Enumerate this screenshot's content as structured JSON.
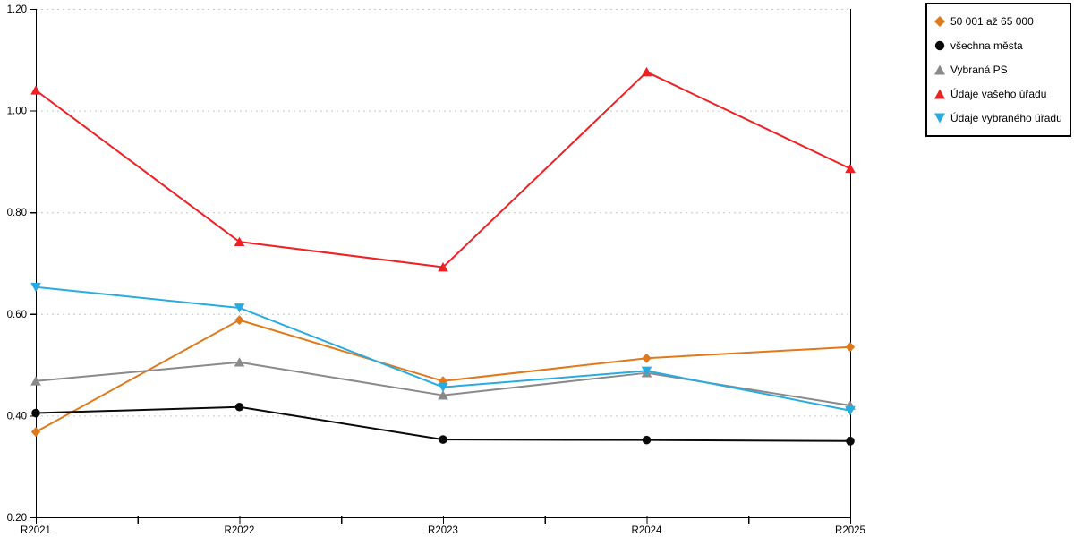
{
  "chart_data": {
    "type": "line",
    "title": "",
    "xlabel": "",
    "ylabel": "",
    "categories": [
      "R2021",
      "R2022",
      "R2023",
      "R2024",
      "R2025"
    ],
    "ylim": [
      0.2,
      1.2
    ],
    "y_tick_labels": [
      "0.20",
      "0.40",
      "0.60",
      "0.80",
      "1.00",
      "1.20"
    ],
    "grid": "horizontal-dotted",
    "legend_position": "top-right",
    "axis_color": "#000000",
    "grid_color": "#c6c6c6",
    "series": [
      {
        "name": "50 001 až 65 000",
        "marker": "diamond",
        "color": "#e0791a",
        "values": [
          0.368,
          0.588,
          0.468,
          0.513,
          0.535
        ]
      },
      {
        "name": "všechna města",
        "marker": "circle",
        "color": "#0a0a0a",
        "values": [
          0.405,
          0.417,
          0.353,
          0.352,
          0.35
        ]
      },
      {
        "name": "Vybraná PS",
        "marker": "triangle-up",
        "color": "#8a8a8a",
        "values": [
          0.468,
          0.505,
          0.44,
          0.484,
          0.42
        ]
      },
      {
        "name": "Údaje vašeho úřadu",
        "marker": "triangle-up",
        "color": "#ee2024",
        "values": [
          1.04,
          0.742,
          0.692,
          1.076,
          0.886
        ]
      },
      {
        "name": "Údaje vybraného úřadu",
        "marker": "triangle-down",
        "color": "#29abe2",
        "values": [
          0.653,
          0.612,
          0.456,
          0.488,
          0.41
        ]
      }
    ]
  }
}
